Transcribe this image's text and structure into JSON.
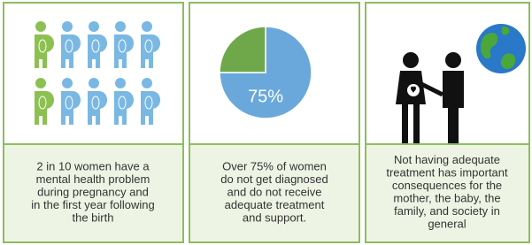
{
  "panels": [
    {
      "lines": [
        "2 in 10 women have a",
        "mental health problem",
        "during pregnancy and",
        "in the first year following",
        "the birth"
      ]
    },
    {
      "pie": {
        "values": [
          75,
          25
        ],
        "colors": [
          "#6aa8dc",
          "#6fa84a"
        ],
        "label": "75%"
      },
      "lines": [
        "Over 75% of women",
        "do not get diagnosed",
        "and do not receive",
        "adequate treatment",
        "and support."
      ]
    },
    {
      "lines": [
        "Not having adequate",
        "treatment has important",
        "consequences for the",
        "mother, the baby, the",
        "family, and society in",
        "general"
      ]
    }
  ]
}
